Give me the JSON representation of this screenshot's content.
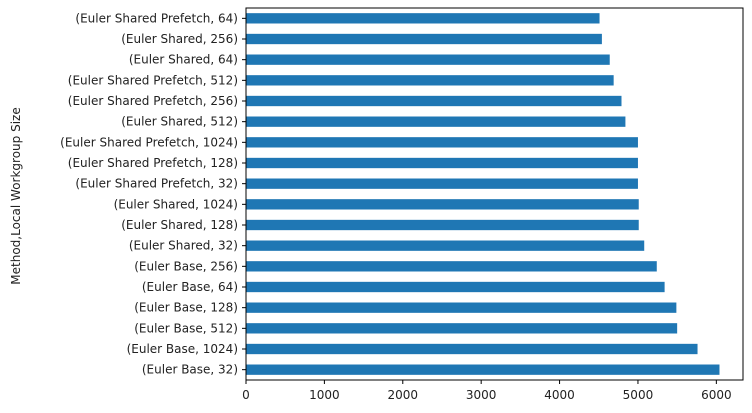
{
  "chart_data": {
    "type": "bar",
    "orientation": "horizontal",
    "title": "",
    "xlabel": "",
    "ylabel": "Method,Local Workgroup Size",
    "categories": [
      "(Euler Base, 32)",
      "(Euler Base, 1024)",
      "(Euler Base, 512)",
      "(Euler Base, 128)",
      "(Euler Base, 64)",
      "(Euler Base, 256)",
      "(Euler Shared, 32)",
      "(Euler Shared, 128)",
      "(Euler Shared, 1024)",
      "(Euler Shared Prefetch, 32)",
      "(Euler Shared Prefetch, 128)",
      "(Euler Shared Prefetch, 1024)",
      "(Euler Shared, 512)",
      "(Euler Shared Prefetch, 256)",
      "(Euler Shared Prefetch, 512)",
      "(Euler Shared, 64)",
      "(Euler Shared, 256)",
      "(Euler Shared Prefetch, 64)"
    ],
    "values": [
      6040,
      5760,
      5500,
      5490,
      5340,
      5240,
      5080,
      5010,
      5010,
      5000,
      5000,
      5000,
      4840,
      4790,
      4690,
      4640,
      4540,
      4510
    ],
    "xlim": [
      0,
      6340
    ],
    "xticks": [
      0,
      1000,
      2000,
      3000,
      4000,
      5000,
      6000
    ],
    "grid": false,
    "legend": "none",
    "bar_color": "#1f77b4"
  }
}
